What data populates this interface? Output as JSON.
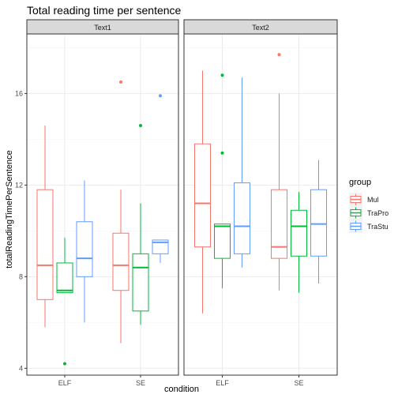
{
  "chart_data": {
    "type": "boxplot",
    "title": "Total reading time per sentence",
    "xlabel": "condition",
    "ylabel": "totalReadingTimePerSentence",
    "ylim": [
      3.7,
      18.6
    ],
    "y_ticks": [
      4,
      8,
      12,
      16
    ],
    "categories": [
      "ELF",
      "SE"
    ],
    "facets": [
      "Text1",
      "Text2"
    ],
    "legend": {
      "title": "group",
      "position": "right",
      "entries": [
        "Mul",
        "TraPro",
        "TraStu"
      ]
    },
    "colors": {
      "Mul": "#F8766D",
      "TraPro": "#00BA38",
      "TraStu": "#619CFF",
      "strip_fill": "#D9D9D9",
      "panel_border": "#333333",
      "grid_major": "#EBEBEB",
      "grid_minor": "#F5F5F5",
      "axis_text": "#4D4D4D"
    },
    "boxes": [
      {
        "facet": "Text1",
        "condition": "ELF",
        "group": "Mul",
        "ymin": 5.8,
        "q1": 7.0,
        "median": 8.5,
        "q3": 11.8,
        "ymax": 14.6,
        "outliers": []
      },
      {
        "facet": "Text1",
        "condition": "ELF",
        "group": "TraPro",
        "ymin": 7.3,
        "q1": 7.3,
        "median": 7.4,
        "q3": 8.6,
        "ymax": 9.7,
        "outliers": [
          4.2
        ]
      },
      {
        "facet": "Text1",
        "condition": "ELF",
        "group": "TraStu",
        "ymin": 6.0,
        "q1": 8.0,
        "median": 8.8,
        "q3": 10.4,
        "ymax": 12.2,
        "outliers": []
      },
      {
        "facet": "Text1",
        "condition": "SE",
        "group": "Mul",
        "ymin": 5.1,
        "q1": 7.4,
        "median": 8.5,
        "q3": 9.9,
        "ymax": 11.8,
        "outliers": [
          16.5
        ]
      },
      {
        "facet": "Text1",
        "condition": "SE",
        "group": "TraPro",
        "ymin": 5.9,
        "q1": 6.5,
        "median": 8.4,
        "q3": 9.0,
        "ymax": 11.2,
        "outliers": [
          14.6
        ]
      },
      {
        "facet": "Text1",
        "condition": "SE",
        "group": "TraStu",
        "ymin": 8.6,
        "q1": 9.0,
        "median": 9.5,
        "q3": 9.6,
        "ymax": 9.6,
        "outliers": [
          15.9
        ]
      },
      {
        "facet": "Text2",
        "condition": "ELF",
        "group": "Mul",
        "ymin": 6.4,
        "q1": 9.3,
        "median": 11.2,
        "q3": 13.8,
        "ymax": 17.0,
        "outliers": []
      },
      {
        "facet": "Text2",
        "condition": "ELF",
        "group": "TraPro",
        "ymin": 7.5,
        "q1": 8.8,
        "median": 10.2,
        "q3": 10.3,
        "ymax": 10.3,
        "outliers": [
          16.8,
          13.4
        ]
      },
      {
        "facet": "Text2",
        "condition": "ELF",
        "group": "TraStu",
        "ymin": 8.4,
        "q1": 9.0,
        "median": 10.2,
        "q3": 12.1,
        "ymax": 16.7,
        "outliers": []
      },
      {
        "facet": "Text2",
        "condition": "SE",
        "group": "Mul",
        "ymin": 7.4,
        "q1": 8.8,
        "median": 9.3,
        "q3": 11.8,
        "ymax": 16.0,
        "outliers": [
          17.7
        ]
      },
      {
        "facet": "Text2",
        "condition": "SE",
        "group": "TraPro",
        "ymin": 7.3,
        "q1": 8.9,
        "median": 10.2,
        "q3": 10.9,
        "ymax": 11.7,
        "outliers": []
      },
      {
        "facet": "Text2",
        "condition": "SE",
        "group": "TraStu",
        "ymin": 7.7,
        "q1": 8.9,
        "median": 10.3,
        "q3": 11.8,
        "ymax": 13.1,
        "outliers": []
      }
    ]
  }
}
